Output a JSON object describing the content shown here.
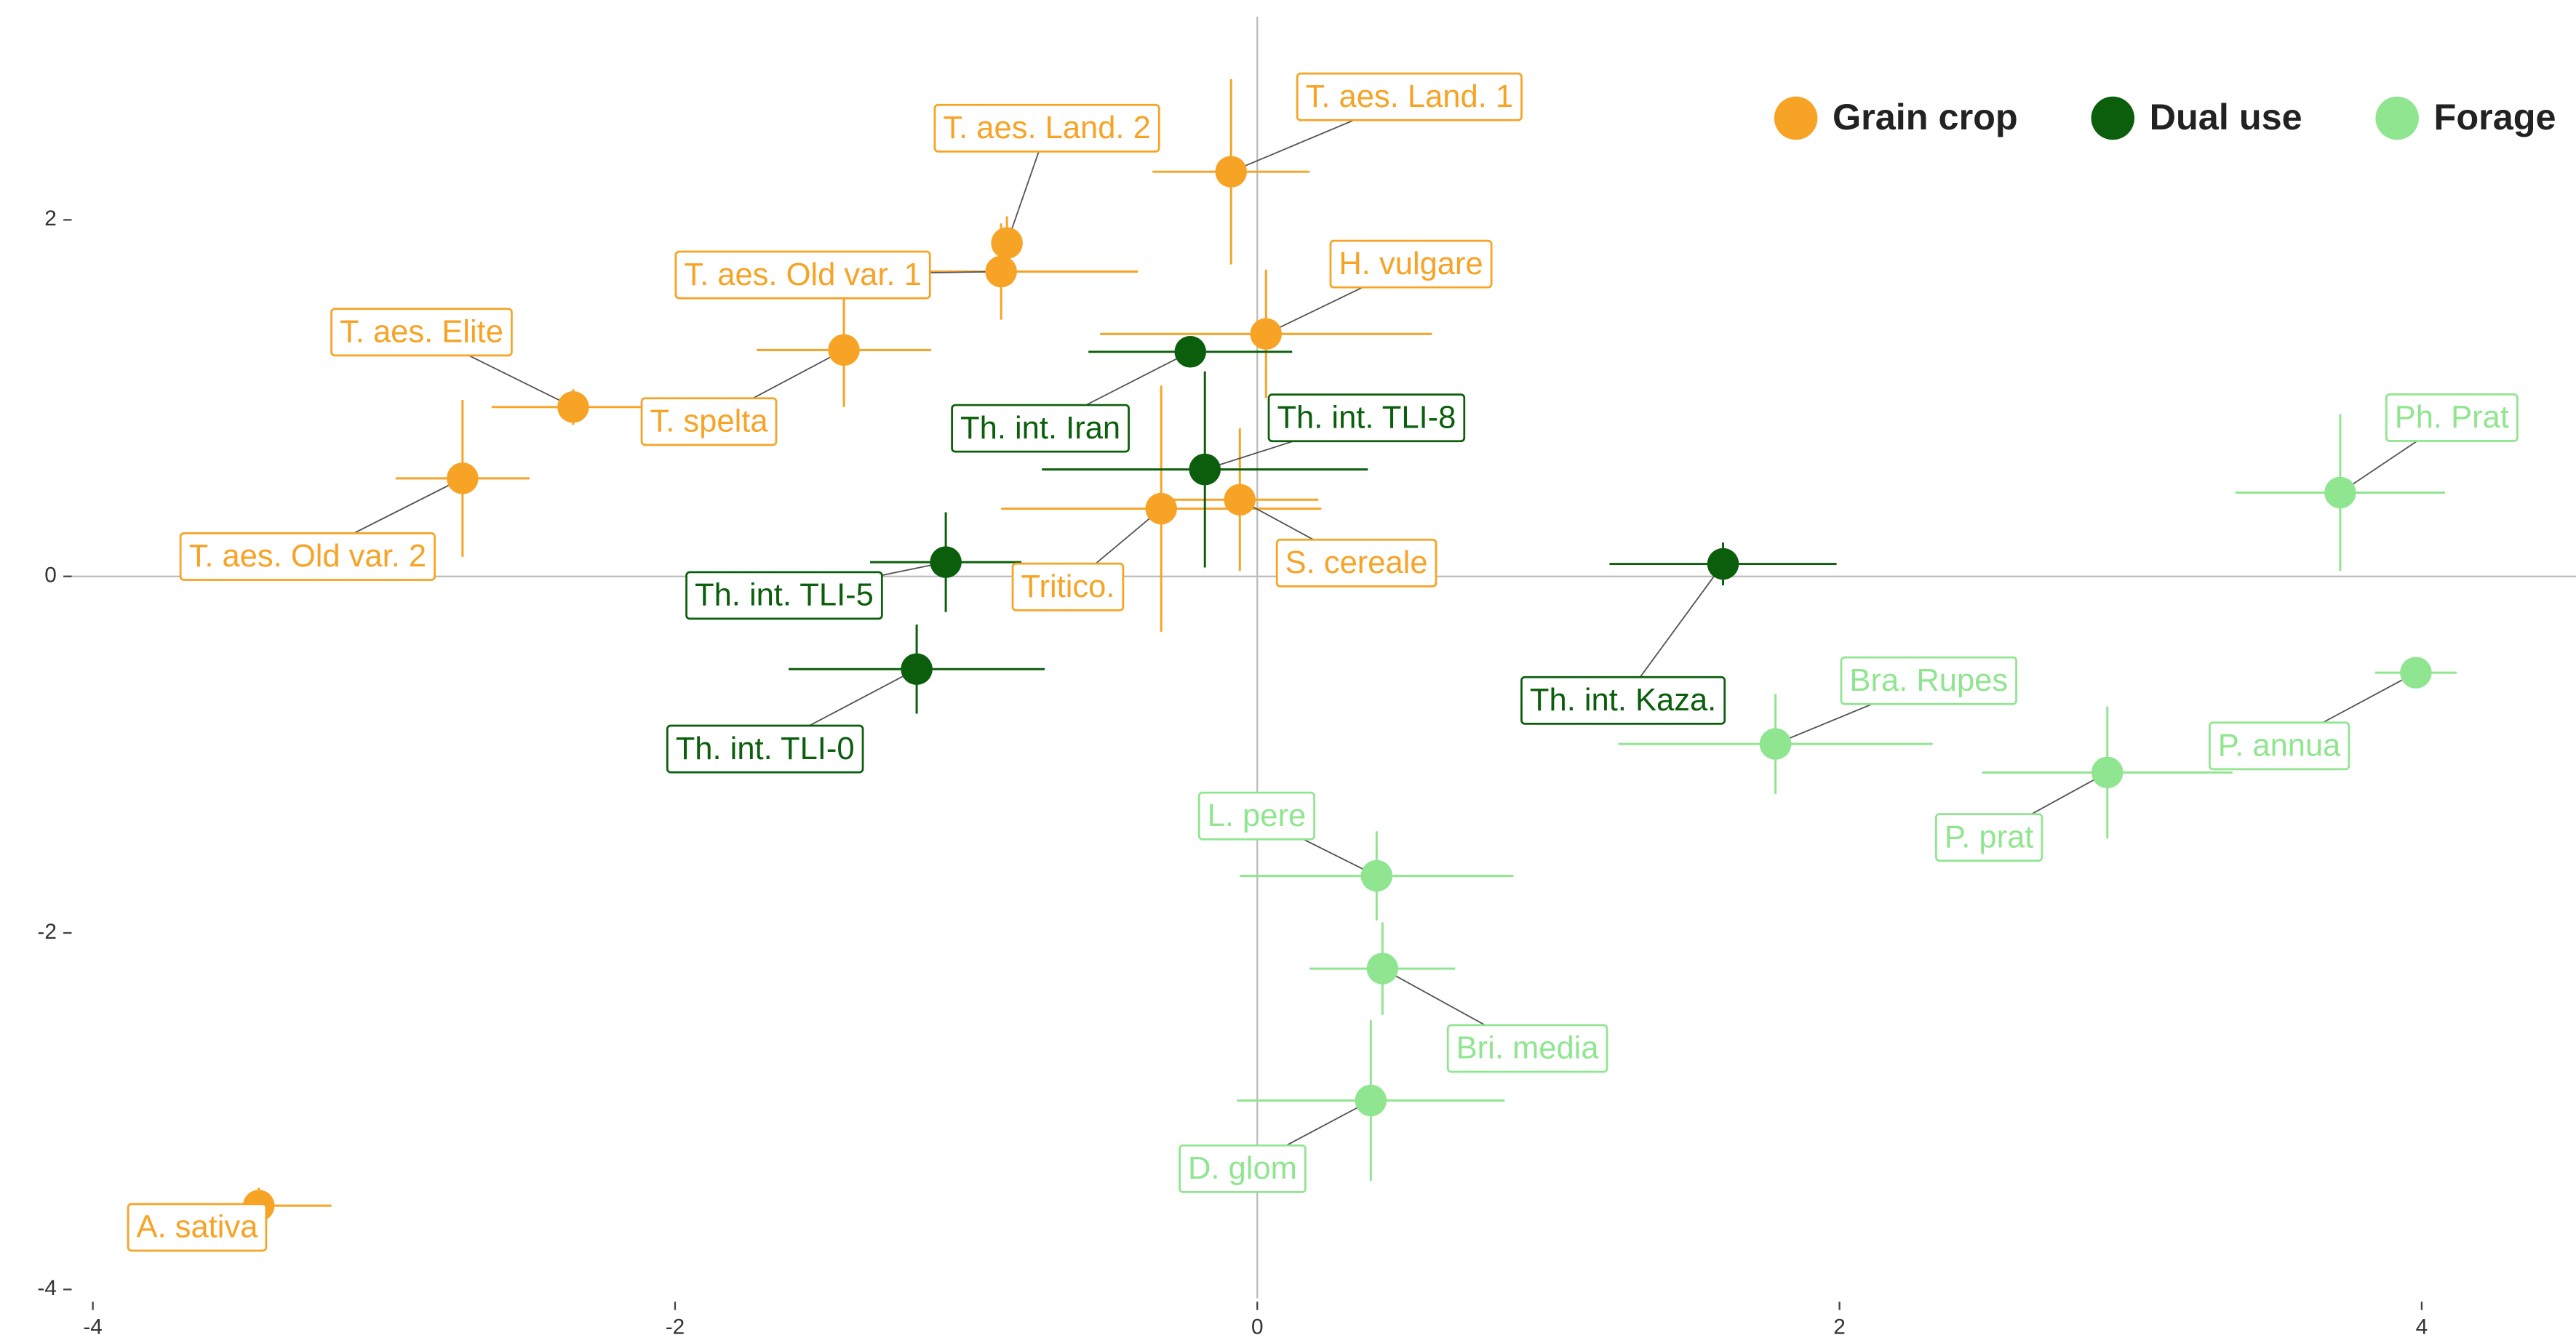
{
  "chart_data": {
    "type": "scatter",
    "xlim": [
      -4.09,
      4.53
    ],
    "ylim": [
      -4.05,
      3.14
    ],
    "xticks": [
      -4,
      -2,
      0,
      2,
      4
    ],
    "yticks": [
      -4,
      -2,
      0,
      2
    ],
    "hlines": [
      0
    ],
    "vlines": [
      0
    ],
    "legend": "top-right",
    "series": [
      {
        "name": "Grain crop",
        "color": "#F7A325",
        "labels": [
          "T. aes. Land. 1",
          "T. aes. Land. 2",
          "T. aes. Old var. 1",
          "T. aes. Elite",
          "T. spelta",
          "T. aes. Old var. 2",
          "H. vulgare",
          "Tritico.",
          "S. cereale",
          "A. sativa"
        ],
        "x": [
          -0.09,
          -0.86,
          -0.88,
          -2.35,
          -1.42,
          -2.73,
          0.03,
          -0.33,
          -0.06,
          -3.43
        ],
        "values": [
          2.27,
          1.87,
          1.71,
          0.95,
          1.27,
          0.55,
          1.36,
          0.38,
          0.43,
          -3.53
        ],
        "xerr": [
          0.27,
          0.05,
          0.47,
          0.28,
          0.3,
          0.23,
          0.57,
          0.55,
          0.27,
          0.25
        ],
        "yerr": [
          0.52,
          0.15,
          0.27,
          0.1,
          0.32,
          0.44,
          0.36,
          0.69,
          0.4,
          0.1
        ]
      },
      {
        "name": "Dual use",
        "color": "#0B5E0B",
        "labels": [
          "Th. int. Iran",
          "Th. int. TLI-8",
          "Th. int. TLI-5",
          "Th. int. TLI-0",
          "Th. int. Kaza."
        ],
        "x": [
          -0.23,
          -0.18,
          -1.07,
          -1.17,
          1.6
        ],
        "values": [
          1.26,
          0.6,
          0.08,
          -0.52,
          0.07
        ],
        "xerr": [
          0.35,
          0.56,
          0.26,
          0.44,
          0.39
        ],
        "yerr": [
          0.0,
          0.55,
          0.28,
          0.25,
          0.12
        ]
      },
      {
        "name": "Forage",
        "color": "#90E590",
        "labels": [
          "Ph. Prat",
          "Bra. Rupes",
          "P. annua",
          "P. prat",
          "L. pere",
          "Bri. media",
          "D. glom"
        ],
        "x": [
          3.72,
          1.78,
          3.98,
          2.92,
          0.41,
          0.43,
          0.39
        ],
        "values": [
          0.47,
          -0.94,
          -0.54,
          -1.1,
          -1.68,
          -2.2,
          -2.94
        ],
        "xerr": [
          0.36,
          0.54,
          0.14,
          0.43,
          0.47,
          0.25,
          0.46
        ],
        "yerr": [
          0.44,
          0.28,
          0.05,
          0.37,
          0.25,
          0.26,
          0.45
        ]
      }
    ]
  }
}
